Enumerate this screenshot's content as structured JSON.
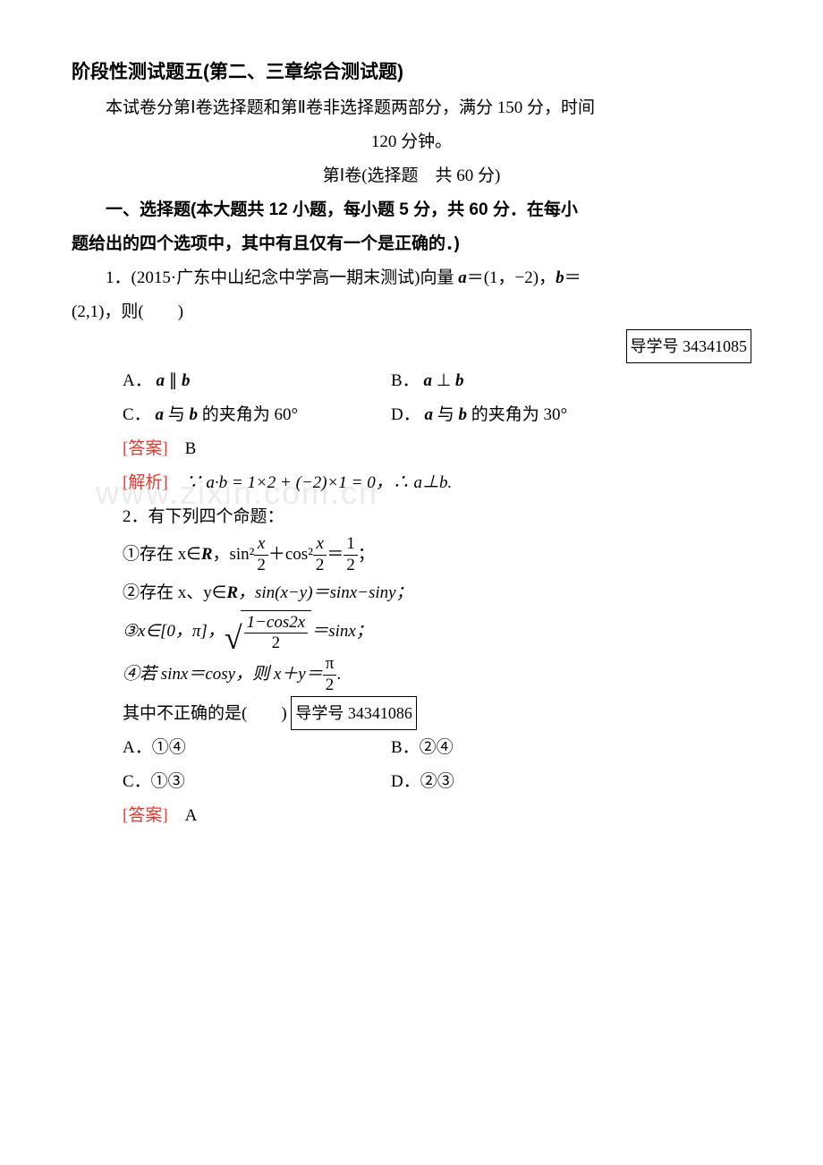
{
  "title": "阶段性测试题五(第二、三章综合测试题)",
  "intro1": "本试卷分第Ⅰ卷选择题和第Ⅱ卷非选择题两部分，满分 150 分，时间",
  "intro2": "120 分钟。",
  "part1": "第Ⅰ卷(选择题　共 60 分)",
  "sec1_instr_a": "一、选择题(本大题共 12 小题，每小题 5 分，共 60 分．在每小",
  "sec1_instr_b": "题给出的四个选项中，其中有且仅有一个是正确的．)",
  "q1_text_a": "1．(2015·广东中山纪念中学高一期末测试)向量 ",
  "q1_text_b": "＝(1，−2)，",
  "q1_text_c": "＝",
  "q1_text_d": "(2,1)，则(　　)",
  "q1_guide": "导学号 34341085",
  "q1_A": "A．",
  "q1_A_rel": "∥",
  "q1_B": "B．",
  "q1_B_rel": "⊥",
  "q1_C": "C．",
  "q1_C_text": " 与 ",
  "q1_C_end": " 的夹角为 60°",
  "q1_D": "D．",
  "q1_D_text": " 与 ",
  "q1_D_end": " 的夹角为 30°",
  "ans_label": "[答案]",
  "q1_ans": "　B",
  "expl_label": "[解析]",
  "q1_expl": "　∵ a·b = 1×2 + (−2)×1 = 0，∴ a⊥b.",
  "q2_text": "2．有下列四个命题：",
  "q2_s1_a": "①存在 x∈",
  "q2_s1_b": "，sin²",
  "q2_s1_c": "＋cos²",
  "q2_s1_d": "＝",
  "q2_s1_e": "；",
  "q2_s2_a": "②存在 x、y∈",
  "q2_s2_b": "，sin(x−y)＝sinx−siny；",
  "q2_s3_a": "③x∈[0，π]，",
  "q2_s3_c": "＝sinx；",
  "q2_s4_a": "④若 sinx＝cosy，则 x＋y＝",
  "q2_s4_b": ".",
  "q2_tail": "其中不正确的是(　　) ",
  "q2_guide": "导学号 34341086",
  "q2_A": "A．①④",
  "q2_B": "B．②④",
  "q2_C": "C．①③",
  "q2_D": "D．②③",
  "q2_ans": "　A",
  "R": "R",
  "a": "a",
  "b": "b",
  "frac_x_2_num": "x",
  "frac_x_2_den": "2",
  "frac_1_2_num": "1",
  "frac_1_2_den": "2",
  "sqrt_num": "1−cos2x",
  "sqrt_den": "2",
  "frac_pi_num": "π",
  "frac_pi_den": "2",
  "watermark": "www.zixin.com.cn"
}
